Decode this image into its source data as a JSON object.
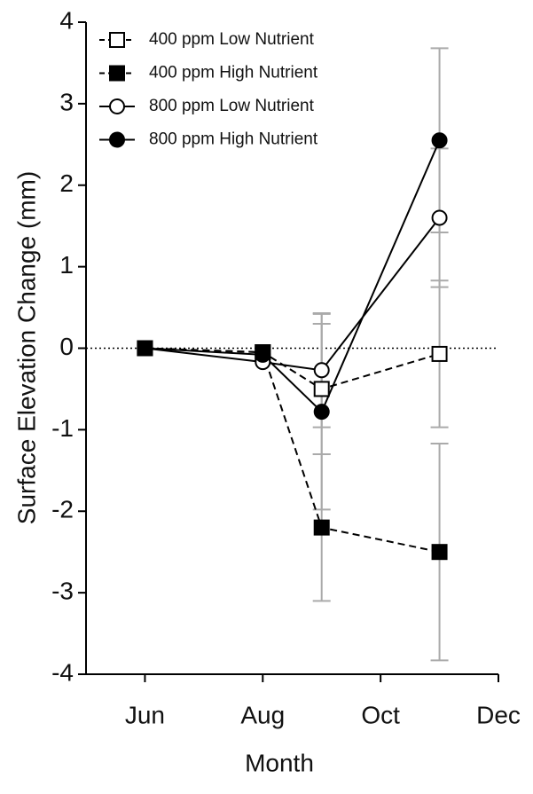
{
  "chart_data": {
    "type": "line",
    "x_label": "Month",
    "y_label": "Surface  Elevation Change (mm)",
    "x": [
      6,
      8,
      9,
      11
    ],
    "xlim": [
      5,
      12
    ],
    "xticks": [
      {
        "value": 6,
        "label": "Jun"
      },
      {
        "value": 8,
        "label": "Aug"
      },
      {
        "value": 10,
        "label": "Oct"
      },
      {
        "value": 12,
        "label": "Dec"
      }
    ],
    "ylim": [
      -4,
      4
    ],
    "yticks": [
      -4,
      -3,
      -2,
      -1,
      0,
      1,
      2,
      3,
      4
    ],
    "reference_line": 0,
    "legend": "upper left",
    "error_color": "#aaaaaa",
    "series": [
      {
        "name": "400 ppm Low Nutrient",
        "color": "#000000",
        "marker": "square",
        "filled": false,
        "dashed": true,
        "values": [
          0,
          -0.05,
          -0.5,
          -0.07
        ],
        "errors": [
          null,
          null,
          0.8,
          0.9
        ]
      },
      {
        "name": "400 ppm High Nutrient",
        "color": "#000000",
        "marker": "square",
        "filled": true,
        "dashed": true,
        "values": [
          0,
          -0.05,
          -2.2,
          -2.5
        ],
        "errors": [
          null,
          null,
          0.9,
          1.33
        ]
      },
      {
        "name": "800 ppm Low Nutrient",
        "color": "#000000",
        "marker": "circle",
        "filled": false,
        "dashed": false,
        "values": [
          0,
          -0.17,
          -0.27,
          1.6
        ],
        "errors": [
          null,
          null,
          0.7,
          0.85
        ]
      },
      {
        "name": "800 ppm High Nutrient",
        "color": "#000000",
        "marker": "circle",
        "filled": true,
        "dashed": false,
        "values": [
          0,
          -0.08,
          -0.78,
          2.55
        ],
        "errors": [
          null,
          null,
          1.2,
          1.13
        ]
      }
    ]
  }
}
